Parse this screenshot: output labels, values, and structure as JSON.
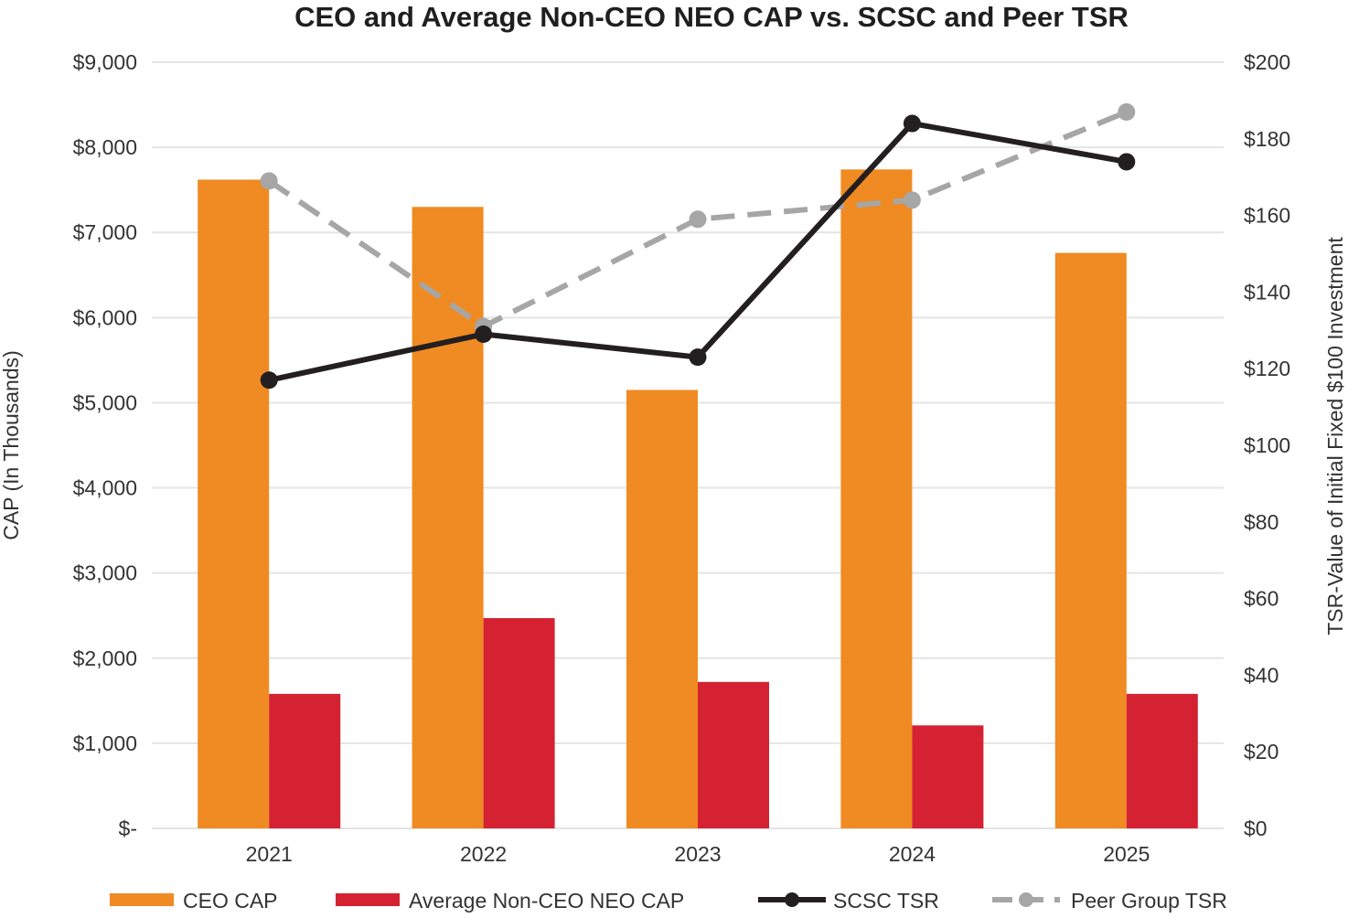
{
  "chart_data": {
    "type": "bar",
    "title": "CEO and Average Non-CEO NEO CAP vs. SCSC and Peer TSR",
    "categories": [
      "2021",
      "2022",
      "2023",
      "2024",
      "2025"
    ],
    "ylabel": "CAP (In Thousands)",
    "y2label": "TSR-Value of Initial Fixed $100 Investment",
    "ylim": [
      0,
      9000
    ],
    "y2lim": [
      0,
      200
    ],
    "y_ticks": [
      "$-",
      "$1,000",
      "$2,000",
      "$3,000",
      "$4,000",
      "$5,000",
      "$6,000",
      "$7,000",
      "$8,000",
      "$9,000"
    ],
    "y2_ticks": [
      "$0",
      "$20",
      "$40",
      "$60",
      "$80",
      "$100",
      "$120",
      "$140",
      "$160",
      "$180",
      "$200"
    ],
    "grid": true,
    "legend_position": "bottom",
    "series": [
      {
        "name": "CEO CAP",
        "kind": "bar",
        "axis": "left",
        "color": "#EF8B22",
        "values": [
          7620,
          7300,
          5150,
          7740,
          6760
        ]
      },
      {
        "name": "Average Non-CEO NEO CAP",
        "kind": "bar",
        "axis": "left",
        "color": "#D42232",
        "values": [
          1580,
          2470,
          1720,
          1210,
          1580
        ]
      },
      {
        "name": "SCSC TSR",
        "kind": "line",
        "axis": "right",
        "color": "#231F20",
        "dashed": false,
        "values": [
          117,
          129,
          123,
          184,
          174
        ]
      },
      {
        "name": "Peer Group TSR",
        "kind": "line",
        "axis": "right",
        "color": "#A6A6A6",
        "dashed": true,
        "values": [
          169,
          131,
          159,
          164,
          187
        ]
      }
    ]
  }
}
